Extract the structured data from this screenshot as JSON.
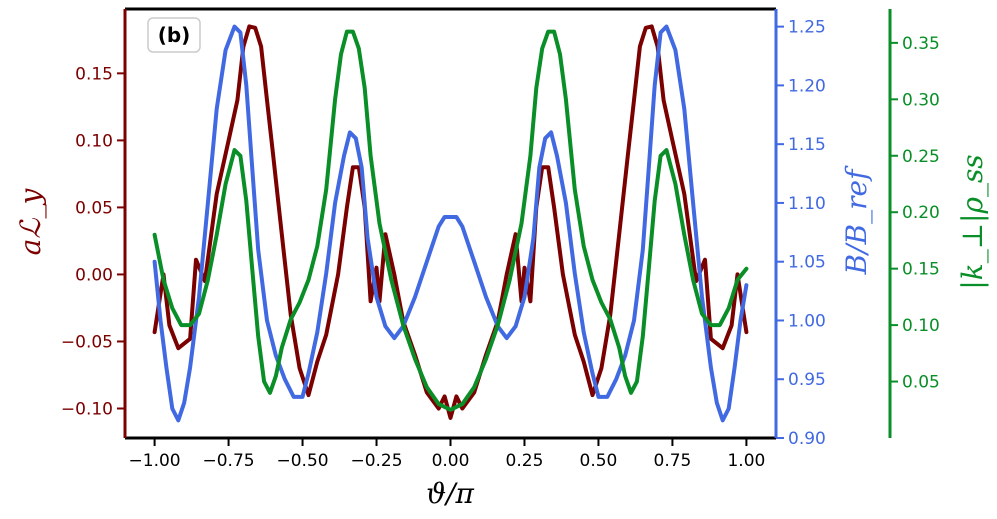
{
  "chart_data": {
    "type": "line",
    "panel_label": "(b)",
    "xlabel": "ϑ/π",
    "xlim": [
      -1.1,
      1.1
    ],
    "x_ticks": [
      -1.0,
      -0.75,
      -0.5,
      -0.25,
      0.0,
      0.25,
      0.5,
      0.75,
      1.0
    ],
    "x_tick_labels": [
      "−1.00",
      "−0.75",
      "−0.50",
      "−0.25",
      "0.00",
      "0.25",
      "0.50",
      "0.75",
      "1.00"
    ],
    "axes": {
      "left": {
        "label": "aℒ_y",
        "color": "#7b0000",
        "ylim": [
          -0.122,
          0.198
        ],
        "ticks": [
          -0.1,
          -0.05,
          0.0,
          0.05,
          0.1,
          0.15
        ],
        "tick_labels": [
          "−0.10",
          "−0.05",
          "0.00",
          "0.05",
          "0.10",
          "0.15"
        ]
      },
      "right1": {
        "label": "B/B_ref",
        "color": "#4169e1",
        "ylim": [
          0.9,
          1.265
        ],
        "ticks": [
          0.9,
          0.95,
          1.0,
          1.05,
          1.1,
          1.15,
          1.2,
          1.25
        ],
        "tick_labels": [
          "0.90",
          "0.95",
          "1.00",
          "1.05",
          "1.10",
          "1.15",
          "1.20",
          "1.25"
        ]
      },
      "right2": {
        "label": "|k_⊥|ρ_ss",
        "color": "#0a8f28",
        "ylim": [
          0.0,
          0.38
        ],
        "ticks": [
          0.05,
          0.1,
          0.15,
          0.2,
          0.25,
          0.3,
          0.35
        ],
        "tick_labels": [
          "0.05",
          "0.10",
          "0.15",
          "0.20",
          "0.25",
          "0.30",
          "0.35"
        ]
      }
    },
    "series": [
      {
        "axis": "left",
        "color": "#7b0000",
        "x": [
          -1.0,
          -0.97,
          -0.95,
          -0.92,
          -0.88,
          -0.86,
          -0.83,
          -0.79,
          -0.75,
          -0.72,
          -0.7,
          -0.68,
          -0.66,
          -0.64,
          -0.62,
          -0.6,
          -0.57,
          -0.54,
          -0.51,
          -0.48,
          -0.45,
          -0.42,
          -0.38,
          -0.35,
          -0.33,
          -0.31,
          -0.29,
          -0.27,
          -0.25,
          -0.24,
          -0.22,
          -0.19,
          -0.16,
          -0.12,
          -0.08,
          -0.04,
          -0.02,
          0.0,
          0.02,
          0.04,
          0.08,
          0.12,
          0.16,
          0.19,
          0.22,
          0.24,
          0.25,
          0.27,
          0.29,
          0.31,
          0.33,
          0.35,
          0.38,
          0.42,
          0.45,
          0.48,
          0.51,
          0.54,
          0.57,
          0.6,
          0.62,
          0.64,
          0.66,
          0.68,
          0.7,
          0.72,
          0.75,
          0.79,
          0.83,
          0.86,
          0.88,
          0.92,
          0.95,
          0.97,
          1.0
        ],
        "y": [
          -0.043,
          0.0,
          -0.038,
          -0.055,
          -0.048,
          0.011,
          -0.005,
          0.06,
          0.1,
          0.13,
          0.17,
          0.185,
          0.184,
          0.17,
          0.13,
          0.09,
          0.03,
          -0.03,
          -0.07,
          -0.09,
          -0.065,
          -0.045,
          0.0,
          0.05,
          0.08,
          0.08,
          0.05,
          -0.02,
          0.005,
          -0.02,
          0.03,
          0.0,
          -0.035,
          -0.06,
          -0.088,
          -0.1,
          -0.091,
          -0.107,
          -0.091,
          -0.1,
          -0.088,
          -0.06,
          -0.035,
          0.0,
          0.03,
          -0.02,
          0.005,
          -0.02,
          0.05,
          0.08,
          0.08,
          0.05,
          0.0,
          -0.045,
          -0.065,
          -0.09,
          -0.07,
          -0.03,
          0.03,
          0.09,
          0.13,
          0.17,
          0.184,
          0.185,
          0.17,
          0.13,
          0.1,
          0.06,
          -0.005,
          0.011,
          -0.048,
          -0.055,
          -0.038,
          0.0,
          -0.043
        ]
      },
      {
        "axis": "right1",
        "color": "#4169e1",
        "x": [
          -1.0,
          -0.98,
          -0.96,
          -0.94,
          -0.92,
          -0.9,
          -0.88,
          -0.85,
          -0.82,
          -0.79,
          -0.76,
          -0.73,
          -0.71,
          -0.69,
          -0.67,
          -0.65,
          -0.62,
          -0.59,
          -0.56,
          -0.53,
          -0.5,
          -0.48,
          -0.45,
          -0.42,
          -0.39,
          -0.36,
          -0.34,
          -0.32,
          -0.3,
          -0.28,
          -0.25,
          -0.22,
          -0.19,
          -0.16,
          -0.12,
          -0.08,
          -0.04,
          -0.02,
          0.0,
          0.02,
          0.04,
          0.08,
          0.12,
          0.16,
          0.19,
          0.22,
          0.25,
          0.28,
          0.3,
          0.32,
          0.34,
          0.36,
          0.39,
          0.42,
          0.45,
          0.48,
          0.5,
          0.53,
          0.56,
          0.59,
          0.62,
          0.65,
          0.67,
          0.69,
          0.71,
          0.73,
          0.76,
          0.79,
          0.82,
          0.85,
          0.88,
          0.9,
          0.92,
          0.94,
          0.96,
          0.98,
          1.0
        ],
        "y": [
          1.05,
          1.0,
          0.96,
          0.925,
          0.915,
          0.93,
          0.96,
          1.02,
          1.1,
          1.18,
          1.23,
          1.25,
          1.245,
          1.2,
          1.13,
          1.06,
          1.0,
          0.97,
          0.95,
          0.935,
          0.935,
          0.955,
          0.99,
          1.04,
          1.1,
          1.14,
          1.16,
          1.155,
          1.13,
          1.07,
          1.02,
          0.995,
          0.985,
          0.995,
          1.02,
          1.05,
          1.08,
          1.088,
          1.088,
          1.088,
          1.08,
          1.05,
          1.02,
          0.995,
          0.985,
          0.995,
          1.02,
          1.07,
          1.13,
          1.155,
          1.16,
          1.14,
          1.1,
          1.04,
          0.99,
          0.955,
          0.935,
          0.935,
          0.95,
          0.97,
          1.0,
          1.06,
          1.13,
          1.2,
          1.245,
          1.25,
          1.23,
          1.18,
          1.1,
          1.02,
          0.96,
          0.93,
          0.915,
          0.925,
          0.96,
          1.0,
          1.03
        ]
      },
      {
        "axis": "right2",
        "color": "#0a8f28",
        "x": [
          -1.0,
          -0.97,
          -0.94,
          -0.91,
          -0.88,
          -0.85,
          -0.82,
          -0.79,
          -0.76,
          -0.73,
          -0.71,
          -0.69,
          -0.67,
          -0.65,
          -0.63,
          -0.61,
          -0.59,
          -0.57,
          -0.54,
          -0.51,
          -0.48,
          -0.45,
          -0.42,
          -0.39,
          -0.37,
          -0.35,
          -0.33,
          -0.31,
          -0.29,
          -0.27,
          -0.24,
          -0.2,
          -0.16,
          -0.12,
          -0.08,
          -0.04,
          0.0,
          0.04,
          0.08,
          0.12,
          0.16,
          0.2,
          0.24,
          0.27,
          0.29,
          0.31,
          0.33,
          0.35,
          0.37,
          0.39,
          0.42,
          0.45,
          0.48,
          0.51,
          0.54,
          0.57,
          0.59,
          0.61,
          0.63,
          0.65,
          0.67,
          0.69,
          0.71,
          0.73,
          0.76,
          0.79,
          0.82,
          0.85,
          0.88,
          0.91,
          0.94,
          0.97,
          1.0
        ],
        "y": [
          0.18,
          0.14,
          0.115,
          0.1,
          0.1,
          0.11,
          0.14,
          0.18,
          0.225,
          0.255,
          0.25,
          0.21,
          0.15,
          0.09,
          0.05,
          0.04,
          0.055,
          0.08,
          0.105,
          0.12,
          0.14,
          0.17,
          0.22,
          0.3,
          0.34,
          0.36,
          0.36,
          0.345,
          0.31,
          0.25,
          0.19,
          0.14,
          0.1,
          0.07,
          0.045,
          0.03,
          0.025,
          0.03,
          0.045,
          0.07,
          0.1,
          0.14,
          0.19,
          0.25,
          0.31,
          0.345,
          0.36,
          0.36,
          0.34,
          0.3,
          0.22,
          0.17,
          0.14,
          0.12,
          0.105,
          0.08,
          0.055,
          0.04,
          0.05,
          0.09,
          0.15,
          0.21,
          0.25,
          0.255,
          0.225,
          0.18,
          0.14,
          0.11,
          0.1,
          0.1,
          0.115,
          0.14,
          0.15
        ]
      }
    ]
  }
}
